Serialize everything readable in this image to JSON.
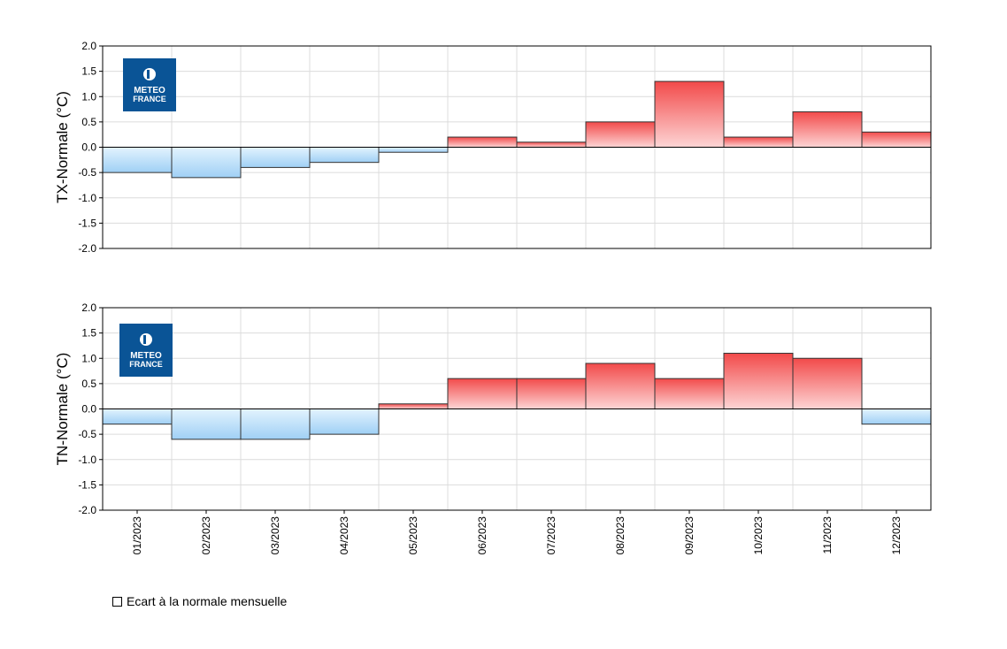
{
  "chart_data": [
    {
      "type": "bar",
      "ylabel": "TX-Normale (°C)",
      "ylim": [
        -2.0,
        2.0
      ],
      "yticks": [
        "2.0",
        "1.5",
        "1.0",
        "0.5",
        "0.0",
        "-0.5",
        "-1.0",
        "-1.5",
        "-2.0"
      ],
      "categories": [
        "01/2023",
        "02/2023",
        "03/2023",
        "04/2023",
        "05/2023",
        "06/2023",
        "07/2023",
        "08/2023",
        "09/2023",
        "10/2023",
        "11/2023",
        "12/2023"
      ],
      "values": [
        -0.5,
        -0.6,
        -0.4,
        -0.3,
        -0.1,
        0.2,
        0.1,
        0.5,
        1.3,
        0.2,
        0.7,
        0.3
      ],
      "grid": true,
      "logo": [
        "METEO",
        "FRANCE"
      ]
    },
    {
      "type": "bar",
      "ylabel": "TN-Normale (°C)",
      "ylim": [
        -2.0,
        2.0
      ],
      "yticks": [
        "2.0",
        "1.5",
        "1.0",
        "0.5",
        "0.0",
        "-0.5",
        "-1.0",
        "-1.5",
        "-2.0"
      ],
      "categories": [
        "01/2023",
        "02/2023",
        "03/2023",
        "04/2023",
        "05/2023",
        "06/2023",
        "07/2023",
        "08/2023",
        "09/2023",
        "10/2023",
        "11/2023",
        "12/2023"
      ],
      "values": [
        -0.3,
        -0.6,
        -0.6,
        -0.5,
        0.1,
        0.6,
        0.6,
        0.9,
        0.6,
        1.1,
        1.0,
        -0.3
      ],
      "grid": true,
      "logo": [
        "METEO",
        "FRANCE"
      ]
    }
  ],
  "legend": {
    "label": "Ecart à la normale mensuelle"
  },
  "colors": {
    "positive_dark": "#f24a4a",
    "positive_light": "#fdd5d5",
    "negative_dark": "#9fd0f5",
    "negative_light": "#e3f3fe",
    "logo": "#0a5496"
  }
}
